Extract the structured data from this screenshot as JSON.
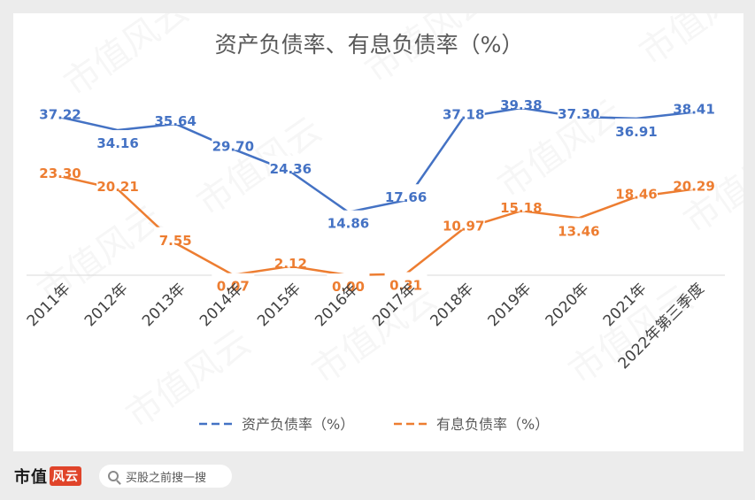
{
  "chart_data": {
    "type": "line",
    "title": "资产负债率、有息负债率（%）",
    "categories": [
      "2011年",
      "2012年",
      "2013年",
      "2014年",
      "2015年",
      "2016年",
      "2017年",
      "2018年",
      "2019年",
      "2020年",
      "2021年",
      "2022年第三季度"
    ],
    "series": [
      {
        "name": "资产负债率（%）",
        "color": "#4472c4",
        "values": [
          37.22,
          34.16,
          35.64,
          29.7,
          24.36,
          14.86,
          17.66,
          37.18,
          39.38,
          37.3,
          36.91,
          38.41
        ],
        "labels": [
          "37.22",
          "34.16",
          "35.64",
          "29.70",
          "24.36",
          "14.86",
          "17.66",
          "37.18",
          "39.38",
          "37.30",
          "36.91",
          "38.41"
        ]
      },
      {
        "name": "有息负债率（%）",
        "color": "#ed7d31",
        "values": [
          23.3,
          20.21,
          7.55,
          0.07,
          2.12,
          0.0,
          0.31,
          10.97,
          15.18,
          13.46,
          18.46,
          20.29
        ],
        "labels": [
          "23.30",
          "20.21",
          "7.55",
          "0.07",
          "2.12",
          "0.00",
          "0.31",
          "10.97",
          "15.18",
          "13.46",
          "18.46",
          "20.29"
        ]
      }
    ],
    "legend_position": "bottom",
    "grid": false
  },
  "watermark": "市值风云",
  "footer": {
    "brand": "市值",
    "brand_badge": "风云",
    "search_icon": "search-icon",
    "search_text": "买股之前搜一搜"
  }
}
